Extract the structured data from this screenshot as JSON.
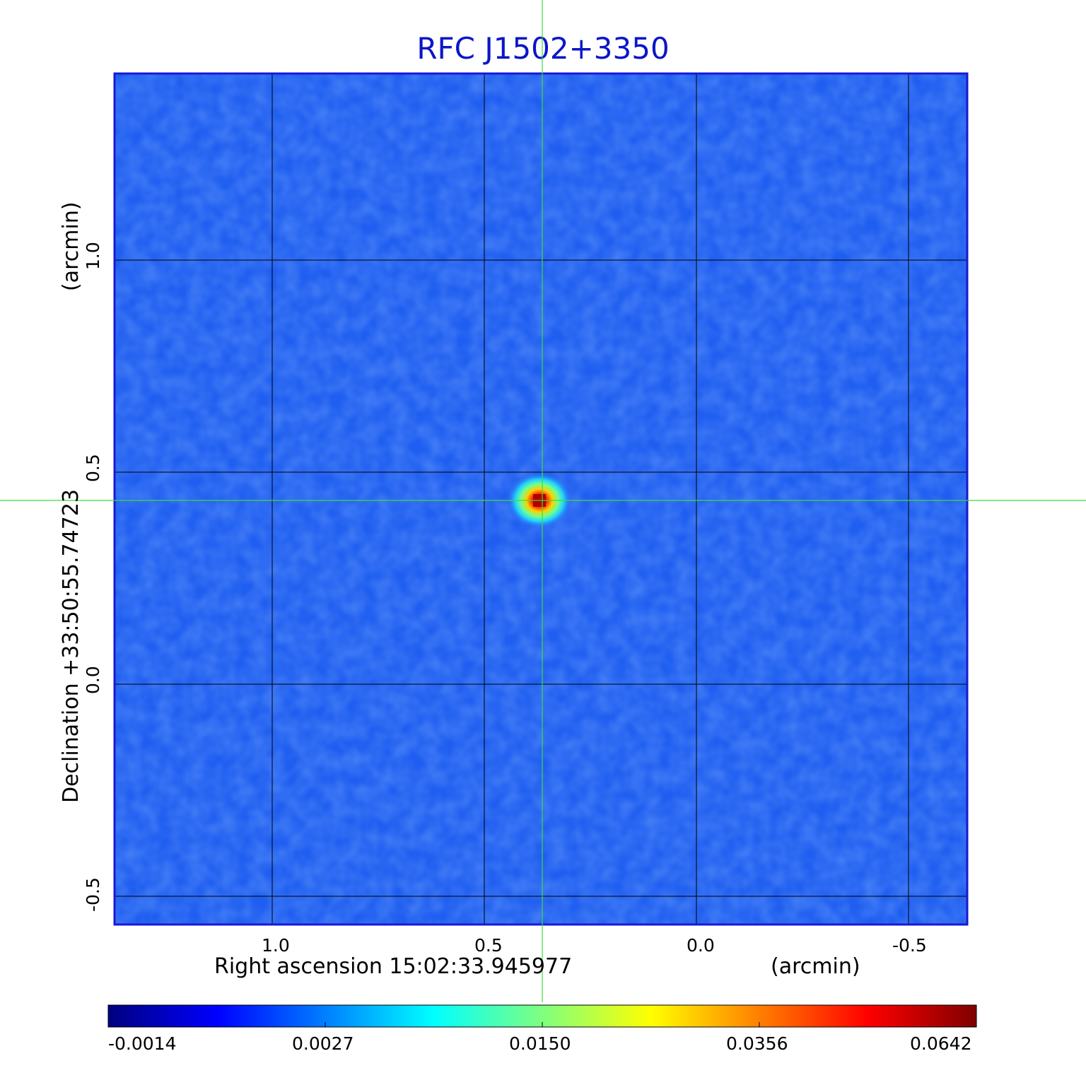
{
  "figure": {
    "title": "RFC J1502+3350"
  },
  "axes": {
    "x_label_left": "Right ascension  15:02:33.945977",
    "x_label_right": "(arcmin)",
    "y_label_main": "Declination  +33:50:55.74723",
    "y_label_unit": "(arcmin)",
    "x_ticks": [
      "1.0",
      "0.5",
      "0.0",
      "-0.5"
    ],
    "y_ticks": [
      "1.0",
      "0.5",
      "0.0",
      "-0.5"
    ]
  },
  "colorbar": {
    "tick_labels": [
      "-0.0014",
      "0.0027",
      "0.0150",
      "0.0356",
      "0.0642"
    ],
    "colormap": [
      "#00007f",
      "#0000ff",
      "#007fff",
      "#00ffff",
      "#7fff7f",
      "#ffff00",
      "#ff7f00",
      "#ff0000",
      "#7f0000"
    ]
  },
  "image": {
    "background_color": "#1f5ef0",
    "grid_color": "#000000",
    "crosshair_color": "#3cdc3c",
    "frame_color": "#1818d8"
  }
}
